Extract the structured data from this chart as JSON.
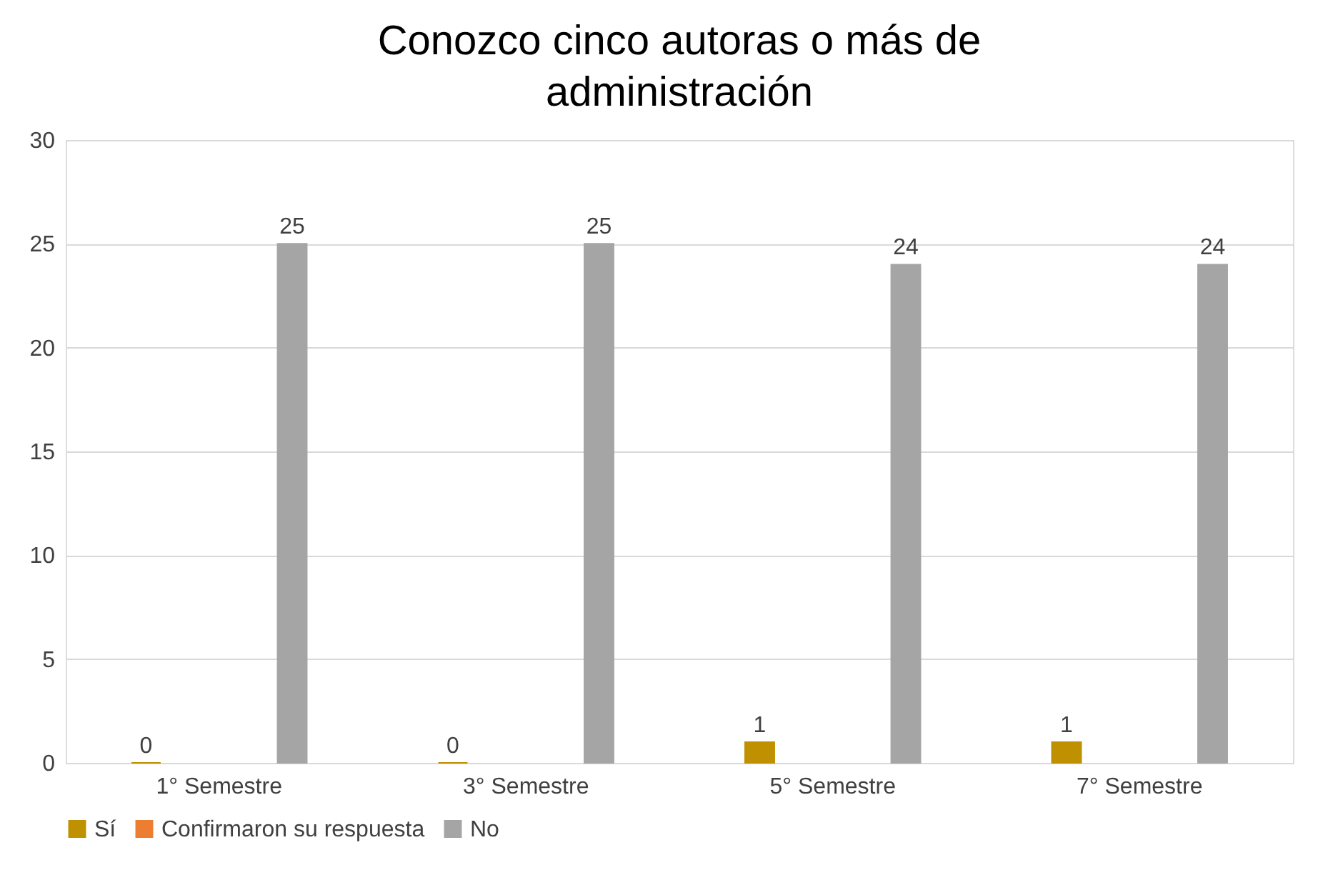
{
  "chart_data": {
    "type": "bar",
    "title": "Conozco cinco autoras o más de administración",
    "categories": [
      "1° Semestre",
      "3° Semestre",
      "5° Semestre",
      "7° Semestre"
    ],
    "series": [
      {
        "name": "Sí",
        "color": "#bf9000",
        "values": [
          0,
          0,
          1,
          1
        ]
      },
      {
        "name": "Confirmaron su respuesta",
        "color": "#ed7d31",
        "values": [
          null,
          null,
          null,
          null
        ]
      },
      {
        "name": "No",
        "color": "#a5a5a5",
        "values": [
          25,
          25,
          24,
          24
        ]
      }
    ],
    "ylim": [
      0,
      30
    ],
    "yticks": [
      0,
      5,
      10,
      15,
      20,
      25,
      30
    ],
    "grid": "y",
    "legend": "bottom",
    "data_labels": true
  }
}
